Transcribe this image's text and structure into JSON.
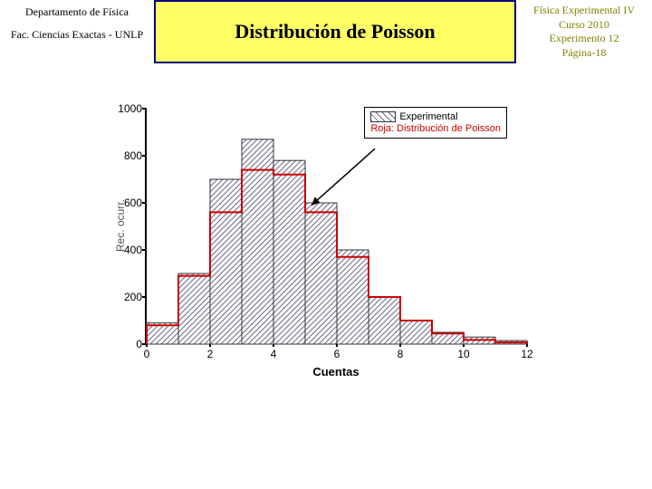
{
  "header": {
    "dept": "Departamento de Física",
    "fac": "Fac. Ciencias Exactas - UNLP",
    "title": "Distribución de Poisson",
    "course_l1": "Física Experimental IV",
    "course_l2": "Curso 2010",
    "course_l3": "Experimento 12",
    "course_l4": "Página-18"
  },
  "chart": {
    "type": "bar-histogram",
    "xlabel": "Cuentas",
    "ylabel": "Rec. ocurr.",
    "xlim": [
      0,
      12
    ],
    "ylim": [
      0,
      1000
    ],
    "xtick_step": 2,
    "ytick_step": 200,
    "xticks": [
      0,
      2,
      4,
      6,
      8,
      10,
      12
    ],
    "yticks": [
      0,
      200,
      400,
      600,
      800,
      1000
    ],
    "background_color": "#ffffff",
    "axis_color": "#000000",
    "experimental": {
      "edges": [
        0,
        1,
        2,
        3,
        4,
        5,
        6,
        7,
        8,
        9,
        10,
        11,
        12
      ],
      "values": [
        90,
        300,
        700,
        870,
        780,
        600,
        400,
        200,
        100,
        50,
        30,
        15
      ],
      "fill_pattern": "diagonal-hatch",
      "hatch_color": "#6a6a8a",
      "border_color": "#333333",
      "bar_width": 1.0
    },
    "poisson": {
      "edges": [
        0,
        1,
        2,
        3,
        4,
        5,
        6,
        7,
        8,
        9,
        10,
        11,
        12
      ],
      "values": [
        80,
        290,
        560,
        740,
        720,
        560,
        370,
        200,
        100,
        45,
        18,
        7
      ],
      "line_color": "#cc0000",
      "line_width": 2
    },
    "legend": {
      "items": [
        {
          "label": "Experimental",
          "style": "hatch"
        },
        {
          "label": "Roja: Distribución de Poisson",
          "style": "red-text"
        }
      ],
      "position": "top-right"
    },
    "annotation_arrow": {
      "from": [
        7.2,
        830
      ],
      "to": [
        5.2,
        590
      ],
      "color": "#000000"
    },
    "title_fontsize": 22,
    "label_fontsize": 13,
    "tick_fontsize": 12
  }
}
